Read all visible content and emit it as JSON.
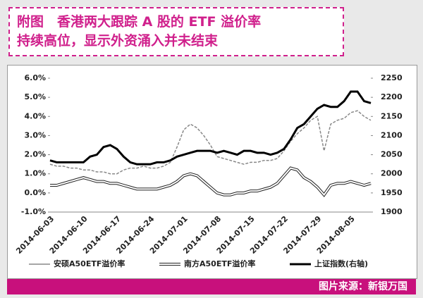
{
  "chart_data": {
    "type": "line",
    "title": [
      "附图　香港两大跟踪 A 股的 ETF 溢价率",
      "持续高位，显示外资涌入并未结束"
    ],
    "source": "图片来源：新银万国",
    "categories": [
      "2014-06-03",
      null,
      null,
      null,
      null,
      "2014-06-10",
      null,
      null,
      null,
      null,
      "2014-06-17",
      null,
      null,
      null,
      null,
      "2014-06-24",
      null,
      null,
      null,
      null,
      "2014-07-01",
      null,
      null,
      null,
      null,
      "2014-07-08",
      null,
      null,
      null,
      null,
      "2014-07-15",
      null,
      null,
      null,
      null,
      "2014-07-22",
      null,
      null,
      null,
      null,
      "2014-07-29",
      null,
      null,
      null,
      null,
      "2014-08-05",
      null,
      null,
      null
    ],
    "series": [
      {
        "name": "安硕A50ETF溢价率",
        "color": "#888888",
        "values": [
          1.5,
          1.4,
          1.4,
          1.3,
          1.3,
          1.2,
          1.2,
          1.1,
          1.1,
          1.0,
          1.0,
          1.2,
          1.3,
          1.3,
          1.4,
          1.3,
          1.3,
          1.4,
          1.6,
          2.4,
          3.3,
          3.6,
          3.4,
          3.0,
          2.5,
          1.9,
          1.8,
          1.7,
          1.6,
          1.5,
          1.6,
          1.6,
          1.7,
          1.7,
          1.8,
          2.2,
          2.7,
          3.1,
          3.4,
          3.8,
          4.0,
          2.2,
          3.6,
          3.8,
          3.9,
          4.2,
          4.3,
          4.0,
          3.8
        ]
      },
      {
        "name": "南方A50ETF溢价率",
        "color": "#ffffff",
        "values": [
          0.4,
          0.4,
          0.5,
          0.6,
          0.7,
          0.8,
          0.7,
          0.6,
          0.6,
          0.5,
          0.5,
          0.4,
          0.3,
          0.2,
          0.2,
          0.2,
          0.2,
          0.3,
          0.4,
          0.6,
          0.9,
          1.0,
          0.9,
          0.6,
          0.3,
          0.0,
          -0.1,
          -0.1,
          0.0,
          0.0,
          0.1,
          0.1,
          0.2,
          0.3,
          0.5,
          0.9,
          1.3,
          1.2,
          0.8,
          0.6,
          0.3,
          -0.1,
          0.4,
          0.5,
          0.5,
          0.6,
          0.5,
          0.4,
          0.5
        ]
      },
      {
        "name": "上证指数(右轴)",
        "color": "#000000",
        "axis": "y2",
        "values": [
          2035,
          2030,
          2030,
          2030,
          2030,
          2030,
          2045,
          2050,
          2070,
          2075,
          2065,
          2045,
          2030,
          2025,
          2025,
          2025,
          2030,
          2030,
          2035,
          2045,
          2050,
          2055,
          2060,
          2060,
          2060,
          2055,
          2060,
          2055,
          2050,
          2060,
          2060,
          2055,
          2055,
          2050,
          2055,
          2065,
          2090,
          2120,
          2130,
          2150,
          2170,
          2180,
          2175,
          2175,
          2190,
          2215,
          2215,
          2190,
          2185
        ]
      }
    ],
    "ylim": [
      -1,
      6
    ],
    "yticks": [
      {
        "value": -1,
        "label": "-1.0%"
      },
      {
        "value": 0,
        "label": "0.0%"
      },
      {
        "value": 1,
        "label": "1.0%"
      },
      {
        "value": 2,
        "label": "2.0%"
      },
      {
        "value": 3,
        "label": "3.0%"
      },
      {
        "value": 4,
        "label": "4.0%"
      },
      {
        "value": 5,
        "label": "5.0%"
      },
      {
        "value": 6,
        "label": "6.0%"
      }
    ],
    "y2lim": [
      1900,
      2250
    ],
    "y2ticks": [
      1900,
      1950,
      2000,
      2050,
      2100,
      2150,
      2200,
      2250
    ],
    "legend": "bottom"
  }
}
